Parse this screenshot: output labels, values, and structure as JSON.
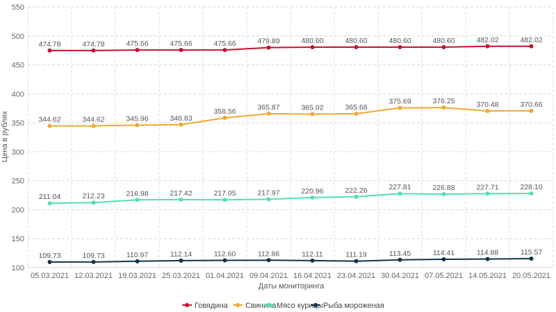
{
  "chart_data": {
    "type": "line",
    "title": "",
    "xlabel": "Даты мониторинга",
    "ylabel": "Цена в рублях",
    "ylim": [
      100,
      550
    ],
    "yticks": [
      100,
      150,
      200,
      250,
      300,
      350,
      400,
      450,
      500,
      550
    ],
    "grid": true,
    "legend_position": "bottom",
    "categories": [
      "05.03.2021",
      "12.03.2021",
      "19.03.2021",
      "25.03.2021",
      "01.04.2021",
      "09.04.2021",
      "16.04.2021",
      "23.04.2021",
      "30.04.2021",
      "07.05.2021",
      "14.05.2021",
      "20.05.2021"
    ],
    "series": [
      {
        "name": "Говядина",
        "color": "#c8102e",
        "values": [
          474.78,
          474.78,
          475.66,
          475.66,
          475.66,
          479.89,
          480.6,
          480.6,
          480.6,
          480.6,
          482.02,
          482.02
        ],
        "labels": [
          "474.78",
          "474.78",
          "475.66",
          "475.66",
          "475.66",
          "479.89",
          "480.60",
          "480.60",
          "480.60",
          "480.60",
          "482.02",
          "482.02"
        ]
      },
      {
        "name": "Свинина",
        "color": "#f0a830",
        "values": [
          344.62,
          344.62,
          345.96,
          346.83,
          358.56,
          365.87,
          365.02,
          365.68,
          375.69,
          376.25,
          370.48,
          370.66
        ],
        "labels": [
          "344.62",
          "344.62",
          "345.96",
          "346.83",
          "358.56",
          "365.87",
          "365.02",
          "365.68",
          "375.69",
          "376.25",
          "370.48",
          "370.66"
        ]
      },
      {
        "name": "Мясо курицы",
        "color": "#4fe0b6",
        "values": [
          211.04,
          212.23,
          216.98,
          217.42,
          217.05,
          217.97,
          220.96,
          222.26,
          227.81,
          226.88,
          227.71,
          228.1
        ],
        "labels": [
          "211.04",
          "212.23",
          "216.98",
          "217.42",
          "217.05",
          "217.97",
          "220.96",
          "222.26",
          "227.81",
          "226.88",
          "227.71",
          "228.10"
        ]
      },
      {
        "name": "Рыба мороженая",
        "color": "#12324a",
        "values": [
          109.73,
          109.73,
          110.97,
          112.14,
          112.6,
          112.86,
          112.11,
          111.19,
          113.45,
          114.41,
          114.88,
          115.57
        ],
        "labels": [
          "109.73",
          "109.73",
          "110.97",
          "112.14",
          "112.60",
          "112.86",
          "112.11",
          "111.19",
          "113.45",
          "114.41",
          "114.88",
          "115.57"
        ]
      }
    ]
  }
}
